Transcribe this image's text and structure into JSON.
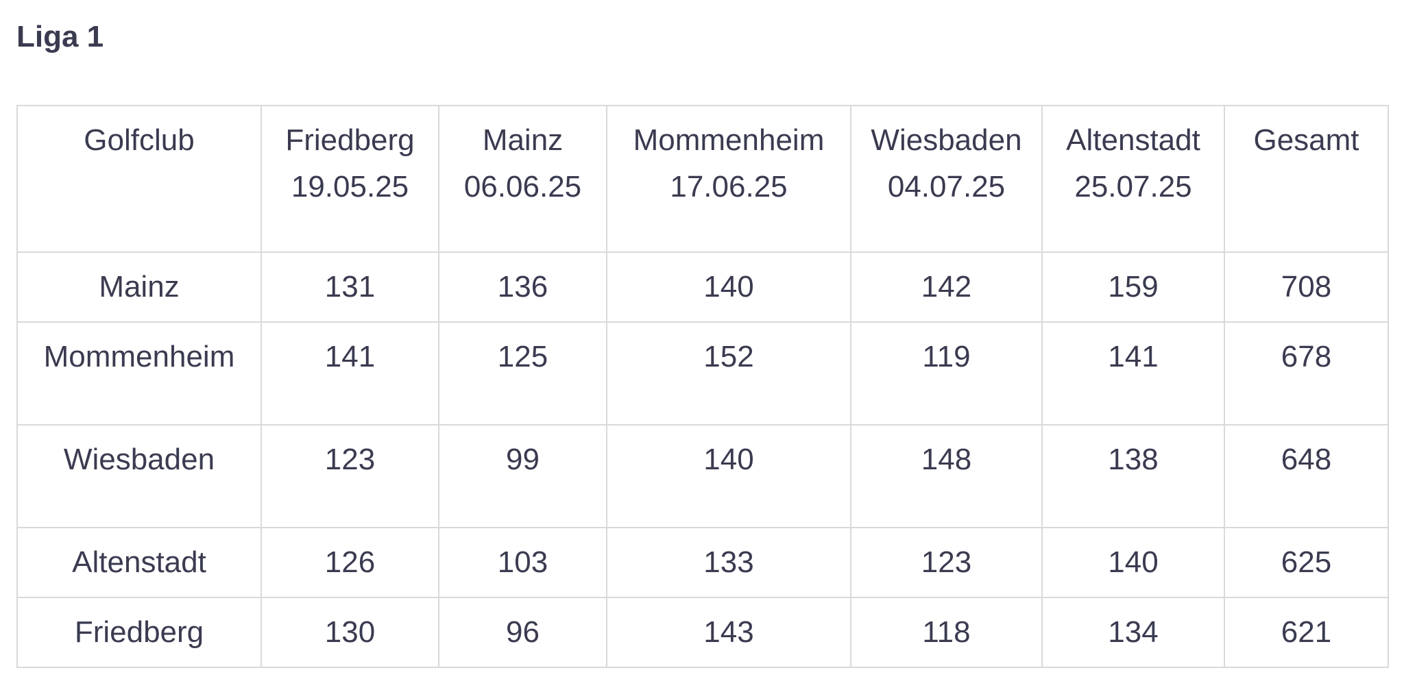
{
  "title": "Liga 1",
  "table": {
    "columns": [
      {
        "label": "Golfclub",
        "date": ""
      },
      {
        "label": "Friedberg",
        "date": "19.05.25"
      },
      {
        "label": "Mainz",
        "date": "06.06.25"
      },
      {
        "label": "Mommenheim",
        "date": "17.06.25"
      },
      {
        "label": "Wiesbaden",
        "date": "04.07.25"
      },
      {
        "label": "Altenstadt",
        "date": "25.07.25"
      },
      {
        "label": "Gesamt",
        "date": ""
      }
    ],
    "rows": [
      {
        "club": "Mainz",
        "scores": [
          "131",
          "136",
          "140",
          "142",
          "159"
        ],
        "total": "708"
      },
      {
        "club": "Mommenheim",
        "scores": [
          "141",
          "125",
          "152",
          "119",
          "141"
        ],
        "total": "678"
      },
      {
        "club": "Wiesbaden",
        "scores": [
          "123",
          "99",
          "140",
          "148",
          "138"
        ],
        "total": "648"
      },
      {
        "club": "Altenstadt",
        "scores": [
          "126",
          "103",
          "133",
          "123",
          "140"
        ],
        "total": "625"
      },
      {
        "club": "Friedberg",
        "scores": [
          "130",
          "96",
          "143",
          "118",
          "134"
        ],
        "total": "621"
      }
    ]
  }
}
